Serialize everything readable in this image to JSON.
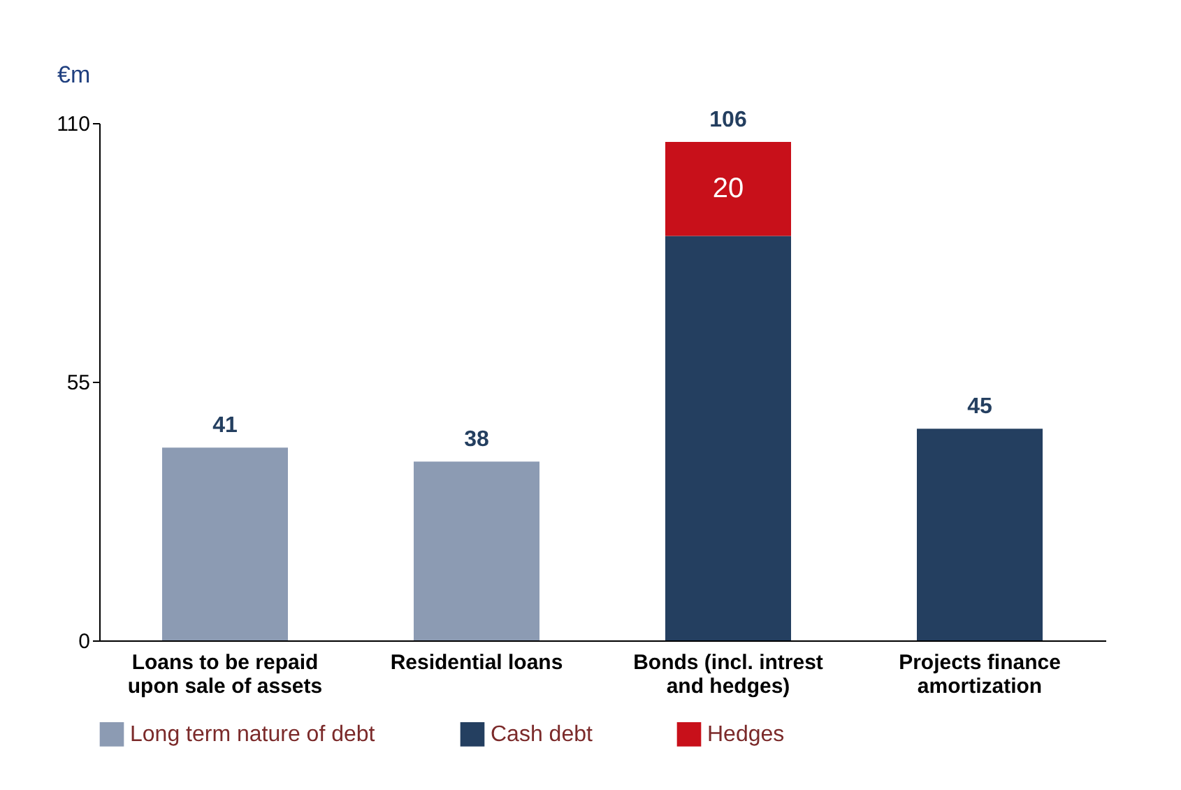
{
  "chart_data": {
    "type": "bar",
    "stacked": true,
    "ylabel": "€m",
    "categories": [
      "Loans to be repaid\nupon sale of assets",
      "Residential loans",
      "Bonds (incl. intrest\nand hedges)",
      "Projects finance\namortization"
    ],
    "series": [
      {
        "name": "Long term nature of debt",
        "color": "#8c9bb3",
        "values": [
          41,
          38,
          null,
          null
        ]
      },
      {
        "name": "Cash debt",
        "color": "#243f60",
        "values": [
          null,
          null,
          86,
          45
        ]
      },
      {
        "name": "Hedges",
        "color": "#c8101a",
        "values": [
          null,
          null,
          20,
          null
        ],
        "value_labels": [
          null,
          null,
          "20",
          null
        ]
      }
    ],
    "totals": [
      "41",
      "38",
      "106",
      "45"
    ],
    "ylim": [
      0,
      110
    ],
    "yticks": [
      0,
      55,
      110
    ],
    "grid": false,
    "legend": "bottom"
  }
}
